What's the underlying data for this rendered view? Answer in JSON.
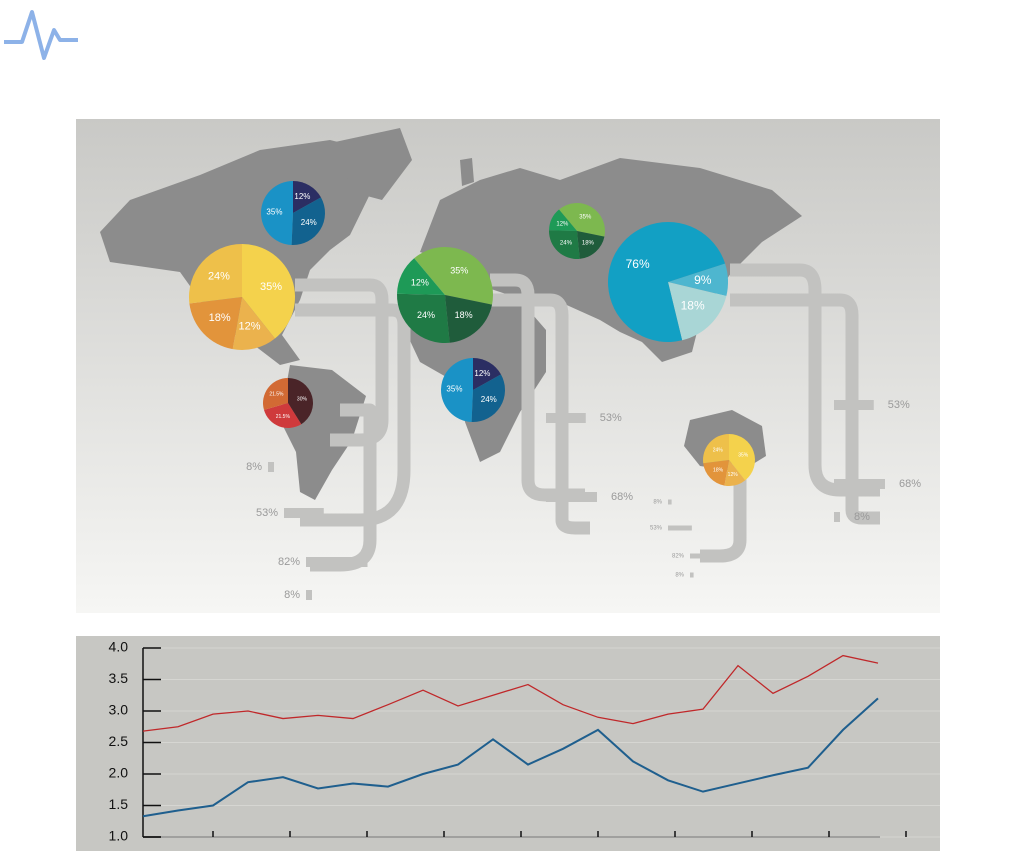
{
  "chart_data": [
    {
      "type": "pie",
      "values": [
        12,
        24,
        35
      ],
      "value_labels": [
        "12%",
        "24%",
        "35%"
      ],
      "colors": [
        "#2b2e63",
        "#12628f",
        "#1a92c6"
      ]
    },
    {
      "type": "pie",
      "values": [
        35,
        12,
        18,
        24
      ],
      "value_labels": [
        "35%",
        "12%",
        "18%",
        "24%"
      ],
      "colors": [
        "#f4d24c",
        "#ebb24d",
        "#e2943b",
        "#eec04a"
      ]
    },
    {
      "type": "pie",
      "values": [
        30,
        21.5,
        21.5
      ],
      "value_labels": [
        "30%",
        "21.5%",
        "21.5%"
      ],
      "colors": [
        "#4a2428",
        "#cf3a3c",
        "#d26a34"
      ]
    },
    {
      "type": "pie",
      "values": [
        35,
        18,
        24,
        12
      ],
      "value_labels": [
        "35%",
        "18%",
        "24%",
        "12%"
      ],
      "colors": [
        "#7db84f",
        "#1f5c3b",
        "#1f7a45",
        "#1e9a57"
      ]
    },
    {
      "type": "pie",
      "values": [
        35,
        18,
        24,
        12
      ],
      "value_labels": [
        "35%",
        "18%",
        "24%",
        "12%"
      ],
      "colors": [
        "#7db84f",
        "#1f5c3b",
        "#1f7a45",
        "#1e9a57"
      ]
    },
    {
      "type": "pie",
      "values": [
        12,
        24,
        35
      ],
      "value_labels": [
        "12%",
        "24%",
        "35%"
      ],
      "colors": [
        "#2b2e63",
        "#12628f",
        "#1a92c6"
      ]
    },
    {
      "type": "pie",
      "values": [
        9,
        18,
        76
      ],
      "value_labels": [
        "9%",
        "18%",
        "76%"
      ],
      "colors": [
        "#4eb6cf",
        "#a9d6d6",
        "#12a0c4"
      ]
    },
    {
      "type": "pie",
      "values": [
        35,
        12,
        18,
        24
      ],
      "value_labels": [
        "35%",
        "12%",
        "18%",
        "24%"
      ],
      "colors": [
        "#f4d24c",
        "#ebb24d",
        "#e2943b",
        "#eec04a"
      ]
    },
    {
      "type": "bar",
      "color": "#c2c2c0",
      "values": [
        8,
        53,
        82,
        8,
        53,
        68,
        53,
        68,
        8,
        8,
        53,
        82,
        8
      ],
      "value_labels": [
        "8%",
        "53%",
        "82%",
        "8%",
        "53%",
        "68%",
        "53%",
        "68%",
        "8%",
        "8%",
        "53%",
        "82%",
        "8%"
      ]
    },
    {
      "type": "line",
      "categories": [
        null,
        null,
        null,
        null,
        null,
        null,
        null,
        null,
        null,
        null,
        null,
        null,
        null,
        null,
        null,
        null,
        null,
        null,
        null,
        null,
        null,
        null
      ],
      "series": [
        {
          "color": "#c0282a",
          "values": [
            2.68,
            2.75,
            2.95,
            3.0,
            2.88,
            2.93,
            2.88,
            3.1,
            3.33,
            3.08,
            3.25,
            3.42,
            3.1,
            2.9,
            2.8,
            2.95,
            3.03,
            3.72,
            3.28,
            3.55,
            3.88,
            3.76
          ]
        },
        {
          "color": "#1f5f8e",
          "values": [
            1.33,
            1.42,
            1.5,
            1.87,
            1.95,
            1.77,
            1.85,
            1.8,
            2.0,
            2.15,
            2.55,
            2.15,
            2.4,
            2.7,
            2.2,
            1.9,
            1.72,
            1.85,
            1.98,
            2.1,
            2.7,
            3.2
          ]
        }
      ],
      "ylim": [
        1,
        4
      ],
      "yticks": [
        {
          "value": 1,
          "label": "1.0"
        },
        {
          "value": 1.5,
          "label": "1.5"
        },
        {
          "value": 2,
          "label": "2.0"
        },
        {
          "value": 2.5,
          "label": "2.5"
        },
        {
          "value": 3,
          "label": "3.0"
        },
        {
          "value": 3.5,
          "label": "3.5"
        },
        {
          "value": 4,
          "label": "4.0"
        }
      ]
    }
  ]
}
